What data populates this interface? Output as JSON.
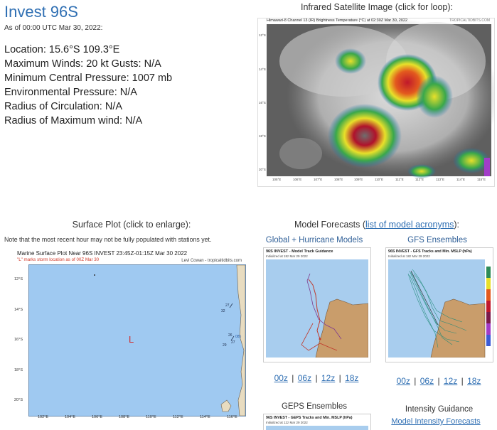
{
  "header": {
    "title": "Invest 96S",
    "as_of": "As of 00:00 UTC Mar 30, 2022:"
  },
  "info": {
    "location": "Location: 15.6°S 109.3°E",
    "winds": "Maximum Winds: 20 kt  Gusts: N/A",
    "pressure": "Minimum Central Pressure: 1007 mb",
    "env_pressure": "Environmental Pressure: N/A",
    "radius_circ": "Radius of Circulation: N/A",
    "radius_max": "Radius of Maximum wind: N/A"
  },
  "satellite": {
    "heading": "Infrared Satellite Image (click for loop):",
    "caption": "Himawari-8 Channel 13 (IR) Brightness Temperature (°C) at 02:30Z Mar 30, 2022",
    "credit": "TROPICALTIDBITS.COM",
    "lat_labels": [
      "12°S",
      "14°S",
      "16°S",
      "18°S",
      "20°S"
    ],
    "lon_labels": [
      "105°E",
      "106°E",
      "107°E",
      "108°E",
      "109°E",
      "110°E",
      "111°E",
      "112°E",
      "113°E",
      "114°E",
      "115°E"
    ]
  },
  "surface": {
    "heading": "Surface Plot (click to enlarge):",
    "note": "Note that the most recent hour may not be fully populated with stations yet.",
    "plot_title": "Marine Surface Plot Near 96S INVEST 23:45Z-01:15Z Mar 30 2022",
    "plot_subtitle": "\"L\" marks storm location as of 00Z Mar 30",
    "credit": "Levi Cowan - tropicaltidbits.com",
    "marker": "L",
    "lat_labels": [
      "12°S",
      "14°S",
      "16°S",
      "18°S",
      "20°S"
    ],
    "lon_labels": [
      "102°E",
      "104°E",
      "106°E",
      "108°E",
      "110°E",
      "112°E",
      "114°E",
      "116°E"
    ]
  },
  "models": {
    "heading_prefix": "Model Forecasts (",
    "heading_link": "list of model acronyms",
    "heading_suffix": "):",
    "global_title": "Global + Hurricane Models",
    "global_chart_title": "96S INVEST - Model Track Guidance",
    "global_chart_sub": "Initialized at 18z Mar 29 2022",
    "gfs_title": "GFS Ensembles",
    "gfs_chart_title": "96S INVEST - GFS Tracks and Min. MSLP (hPa)",
    "gfs_chart_sub": "Initialized at 18z Mar 29 2022",
    "runs": [
      "00z",
      "06z",
      "12z",
      "18z"
    ],
    "sep": "|",
    "geps_title": "GEPS Ensembles",
    "geps_chart_title": "96S INVEST - GEPS Tracks and Min. MSLP (hPa)",
    "geps_chart_sub": "Initialized at 12z Mar 29 2022",
    "intensity_title": "Intensity Guidance",
    "intensity_link": "Model Intensity Forecasts"
  }
}
